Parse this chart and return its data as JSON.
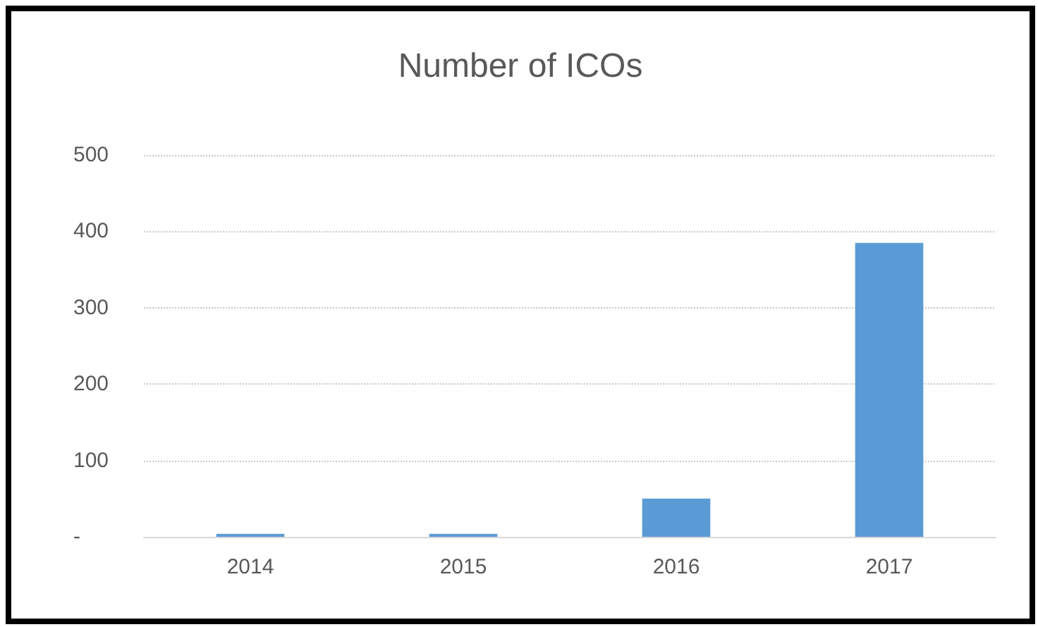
{
  "chart_data": {
    "type": "bar",
    "title": "Number of ICOs",
    "categories": [
      "2014",
      "2015",
      "2016",
      "2017"
    ],
    "values": [
      4,
      4,
      50,
      385
    ],
    "color": "#5b9bd5",
    "ylim": [
      0,
      500
    ],
    "yticks": [
      {
        "value": 0,
        "label": "-"
      },
      100,
      200,
      300,
      400,
      500
    ],
    "grid": "y"
  }
}
